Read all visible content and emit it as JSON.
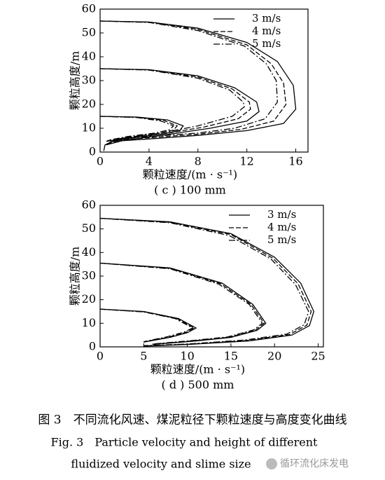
{
  "chart_data": [
    {
      "type": "line",
      "subtitle": "( c ) 100 mm",
      "x_label": "颗粒速度/(m · s⁻¹)",
      "y_label": "颗粒高度/m",
      "xlim": [
        0,
        17
      ],
      "ylim": [
        0,
        60
      ],
      "xticks": [
        0,
        4,
        8,
        12,
        16
      ],
      "yticks": [
        0,
        10,
        20,
        30,
        40,
        50,
        60
      ],
      "legend": "upper right",
      "series": [
        {
          "name": "3 m/s",
          "color": "#000000",
          "dash": "solid",
          "curves": [
            {
              "x": [
                0,
                4,
                8,
                12,
                14.5,
                15.8,
                16,
                15,
                12,
                8,
                4,
                1,
                0.4,
                0.3
              ],
              "y": [
                55,
                54.6,
                52,
                46,
                38,
                28,
                18,
                12,
                9,
                7,
                5.5,
                4.5,
                3,
                0.5
              ]
            },
            {
              "x": [
                0,
                4,
                8,
                11,
                12.8,
                13,
                12,
                9,
                5,
                2,
                0.5
              ],
              "y": [
                35,
                34.6,
                32,
                27,
                21,
                17,
                13,
                10,
                7,
                5,
                3
              ]
            },
            {
              "x": [
                0,
                3,
                5.5,
                6.8,
                6.5,
                5,
                2.5,
                0.5
              ],
              "y": [
                15,
                14.7,
                13.5,
                11,
                9,
                7.5,
                6,
                4.5
              ]
            }
          ]
        },
        {
          "name": "4 m/s",
          "color": "#000000",
          "dash": "dashed",
          "curves": [
            {
              "x": [
                0,
                4,
                8,
                12,
                14,
                15,
                15.2,
                14.2,
                11.5,
                8,
                4,
                1.2,
                0.5
              ],
              "y": [
                55,
                54.5,
                51.5,
                45,
                37,
                29,
                20,
                13,
                9.5,
                7.5,
                6,
                5,
                3
              ]
            },
            {
              "x": [
                0,
                4,
                8,
                10.8,
                12.2,
                12.3,
                11.3,
                8.5,
                5,
                2,
                0.6
              ],
              "y": [
                35,
                34.5,
                31.5,
                26.5,
                21,
                18,
                14,
                10.5,
                7.5,
                5.5,
                3.5
              ]
            },
            {
              "x": [
                0,
                3,
                5.2,
                6.3,
                6,
                4.7,
                2.3,
                0.6
              ],
              "y": [
                15,
                14.6,
                13.3,
                11,
                9.2,
                7.8,
                6.2,
                4.8
              ]
            }
          ]
        },
        {
          "name": "5 m/s",
          "color": "#000000",
          "dash": "dashdot",
          "curves": [
            {
              "x": [
                0,
                4,
                8,
                11.8,
                13.6,
                14.4,
                14.5,
                13.5,
                11,
                8,
                4,
                1.4,
                0.6
              ],
              "y": [
                55,
                54.4,
                51,
                44.5,
                37,
                30,
                21,
                14,
                10,
                8,
                6.5,
                5.5,
                3.5
              ]
            },
            {
              "x": [
                0,
                4,
                8,
                10.6,
                11.7,
                11.8,
                10.8,
                8,
                5,
                2,
                0.7
              ],
              "y": [
                35,
                34.4,
                31,
                26,
                21,
                19,
                15,
                11,
                8,
                6,
                4
              ]
            },
            {
              "x": [
                0,
                3,
                5,
                6,
                5.7,
                4.5,
                2.2,
                0.7
              ],
              "y": [
                15,
                14.5,
                13,
                11,
                9.4,
                8,
                6.5,
                5
              ]
            }
          ]
        }
      ]
    },
    {
      "type": "line",
      "subtitle": "( d ) 500 mm",
      "x_label": "颗粒速度/(m · s⁻¹)",
      "y_label": "颗粒高度/m",
      "xlim": [
        0,
        25.6
      ],
      "ylim": [
        0,
        60
      ],
      "xticks": [
        0,
        5,
        10,
        15,
        20,
        25
      ],
      "yticks": [
        0,
        10,
        20,
        30,
        40,
        50,
        60
      ],
      "legend": "upper right",
      "series": [
        {
          "name": "3 m/s",
          "color": "#000000",
          "dash": "solid",
          "curves": [
            {
              "x": [
                0,
                8,
                15,
                20,
                23,
                24.5,
                24,
                22,
                17,
                10,
                5
              ],
              "y": [
                54.5,
                53,
                48,
                38,
                27,
                15,
                9,
                5,
                2.5,
                1,
                0.3
              ]
            },
            {
              "x": [
                0,
                8,
                14,
                17.5,
                19,
                18,
                15,
                11,
                6
              ],
              "y": [
                35.5,
                33.5,
                27,
                18,
                10,
                7,
                4,
                2.5,
                1
              ]
            },
            {
              "x": [
                0,
                5,
                9,
                11,
                10,
                8,
                5
              ],
              "y": [
                16,
                15,
                12,
                8,
                6,
                4,
                2
              ]
            }
          ]
        },
        {
          "name": "4 m/s",
          "color": "#000000",
          "dash": "dashed",
          "curves": [
            {
              "x": [
                0,
                8,
                15,
                19.8,
                22.7,
                24.2,
                23.7,
                21.7,
                16.8,
                10,
                5
              ],
              "y": [
                54.5,
                52.8,
                47.6,
                37.6,
                26.7,
                15,
                9.2,
                5.2,
                2.7,
                1.1,
                0.4
              ]
            },
            {
              "x": [
                0,
                8,
                13.8,
                17.3,
                18.8,
                17.8,
                14.8,
                10.8,
                6
              ],
              "y": [
                35.5,
                33.3,
                26.8,
                18,
                10,
                7.1,
                4.1,
                2.6,
                1.1
              ]
            },
            {
              "x": [
                0,
                5,
                8.8,
                10.8,
                9.8,
                7.8,
                5
              ],
              "y": [
                16,
                14.9,
                12,
                8,
                6.1,
                4.1,
                2.1
              ]
            }
          ]
        },
        {
          "name": "5 m/s",
          "color": "#000000",
          "dash": "dashdot",
          "curves": [
            {
              "x": [
                0,
                8,
                14.8,
                19.6,
                22.4,
                23.9,
                23.4,
                21.4,
                16.6,
                10,
                5
              ],
              "y": [
                54.5,
                52.6,
                47.2,
                37.2,
                26.4,
                15,
                9.4,
                5.4,
                2.9,
                1.2,
                0.5
              ]
            },
            {
              "x": [
                0,
                8,
                13.6,
                17.1,
                18.6,
                17.6,
                14.6,
                10.6,
                6
              ],
              "y": [
                35.5,
                33.1,
                26.6,
                18,
                10,
                7.2,
                4.2,
                2.7,
                1.2
              ]
            },
            {
              "x": [
                0,
                5,
                8.6,
                10.6,
                9.6,
                7.6,
                5
              ],
              "y": [
                16,
                14.8,
                12,
                8,
                6.2,
                4.2,
                2.2
              ]
            }
          ]
        }
      ]
    }
  ],
  "caption": {
    "zh": "图 3　不同流化风速、煤泥粒径下颗粒速度与高度变化曲线",
    "en_line1": "Fig. 3　Particle velocity and height of different",
    "en_line2": "fluidized velocity and slime size"
  },
  "watermark": "循环流化床发电"
}
